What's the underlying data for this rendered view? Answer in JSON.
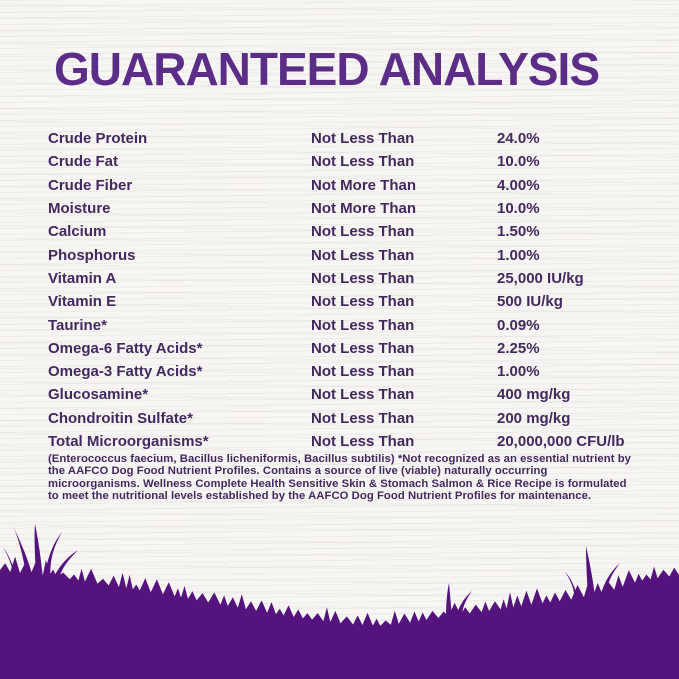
{
  "page": {
    "title": "GUARANTEED ANALYSIS"
  },
  "colors": {
    "title_purple": "#5c2d87",
    "text_purple": "#43295e",
    "grass_purple": "#54137d",
    "background": "#f7f6f4"
  },
  "table": {
    "rows": [
      {
        "nutrient": "Crude Protein",
        "condition": "Not Less Than",
        "value": "24.0%"
      },
      {
        "nutrient": "Crude Fat",
        "condition": "Not Less Than",
        "value": "10.0%"
      },
      {
        "nutrient": "Crude Fiber",
        "condition": "Not More Than",
        "value": "4.00%"
      },
      {
        "nutrient": "Moisture",
        "condition": "Not More Than",
        "value": "10.0%"
      },
      {
        "nutrient": "Calcium",
        "condition": "Not Less Than",
        "value": "1.50%"
      },
      {
        "nutrient": "Phosphorus",
        "condition": "Not Less Than",
        "value": "1.00%"
      },
      {
        "nutrient": "Vitamin A",
        "condition": "Not Less Than",
        "value": "25,000 IU/kg"
      },
      {
        "nutrient": "Vitamin E",
        "condition": "Not Less Than",
        "value": "500 IU/kg"
      },
      {
        "nutrient": "Taurine*",
        "condition": "Not Less Than",
        "value": "0.09%"
      },
      {
        "nutrient": "Omega-6 Fatty Acids*",
        "condition": "Not Less Than",
        "value": "2.25%"
      },
      {
        "nutrient": "Omega-3 Fatty Acids*",
        "condition": "Not Less Than",
        "value": "1.00%"
      },
      {
        "nutrient": "Glucosamine*",
        "condition": "Not Less Than",
        "value": "400 mg/kg"
      },
      {
        "nutrient": "Chondroitin Sulfate*",
        "condition": "Not Less Than",
        "value": "200 mg/kg"
      },
      {
        "nutrient": "Total Microorganisms*",
        "condition": "Not Less Than",
        "value": "20,000,000 CFU/lb"
      }
    ]
  },
  "footnote": {
    "text": "(Enterococcus faecium, Bacillus licheniformis, Bacillus subtilis) *Not recognized as an essential nutrient by the AAFCO Dog Food Nutrient Profiles. Contains a source of live (viable) naturally occurring microorganisms. Wellness Complete Health Sensitive Skin & Stomach Salmon & Rice Recipe is formulated to meet the nutritional levels established by the AAFCO Dog Food Nutrient Profiles for maintenance."
  }
}
